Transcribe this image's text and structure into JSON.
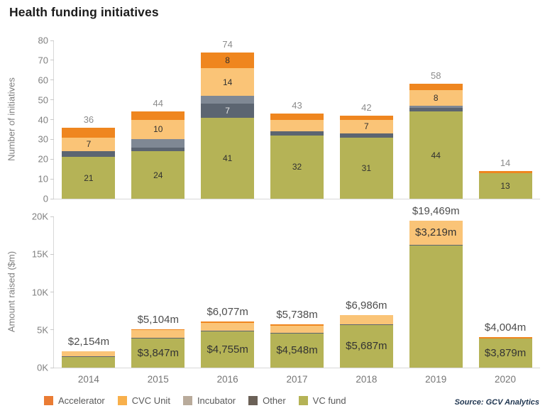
{
  "page": {
    "title": "Health funding initiatives"
  },
  "source": "Source: GCV Analytics",
  "colors": {
    "accelerator_bar": "#EF861F",
    "cvc_unit_bar": "#FAC477",
    "incubator_bar": "#7F8894",
    "other_bar": "#5C6571",
    "vc_fund_bar": "#B5B356",
    "axis_line": "#D8D8D8",
    "tick_text": "#808080",
    "total_text_top": "#8C8C8C",
    "total_text_bottom": "#4D4D4D"
  },
  "legend": [
    {
      "label": "Accelerator",
      "color": "#EA7C34"
    },
    {
      "label": "CVC Unit",
      "color": "#F8B04C"
    },
    {
      "label": "Incubator",
      "color": "#B9AB9B"
    },
    {
      "label": "Other",
      "color": "#6B6157"
    },
    {
      "label": "VC fund",
      "color": "#B5B356"
    }
  ],
  "chart_data": [
    {
      "type": "bar",
      "stacked": true,
      "title": "",
      "ylabel": "Number of initiatives",
      "xlabel": "",
      "ylim": [
        0,
        80
      ],
      "grid": false,
      "legend_position": "bottom",
      "categories": [
        "2014",
        "2015",
        "2016",
        "2017",
        "2018",
        "2019",
        "2020"
      ],
      "yticks": [
        {
          "v": 0,
          "label": "0"
        },
        {
          "v": 10,
          "label": "10"
        },
        {
          "v": 20,
          "label": "20"
        },
        {
          "v": 30,
          "label": "30"
        },
        {
          "v": 40,
          "label": "40"
        },
        {
          "v": 50,
          "label": "50"
        },
        {
          "v": 60,
          "label": "60"
        },
        {
          "v": 70,
          "label": "70"
        },
        {
          "v": 80,
          "label": "80"
        }
      ],
      "totals": [
        36,
        44,
        74,
        43,
        42,
        58,
        14
      ],
      "total_labels": [
        "36",
        "44",
        "74",
        "43",
        "42",
        "58",
        "14"
      ],
      "series": [
        {
          "name": "VC fund",
          "color": "#B5B356",
          "values": [
            21,
            24,
            41,
            32,
            31,
            44,
            13
          ],
          "labels": [
            "21",
            "24",
            "41",
            "32",
            "31",
            "44",
            "13"
          ],
          "label_style": "dark"
        },
        {
          "name": "Other",
          "color": "#5C6571",
          "values": [
            3,
            2,
            7,
            2,
            2,
            2,
            0
          ],
          "labels": [
            "",
            "",
            "7",
            "",
            "",
            "",
            ""
          ],
          "label_style": "light"
        },
        {
          "name": "Incubator",
          "color": "#7F8894",
          "values": [
            0,
            4,
            4,
            0,
            0,
            1,
            0
          ],
          "labels": [
            "",
            "",
            "",
            "",
            "",
            "",
            ""
          ],
          "label_style": "dark"
        },
        {
          "name": "CVC Unit",
          "color": "#FAC477",
          "values": [
            7,
            10,
            14,
            6,
            7,
            8,
            0
          ],
          "labels": [
            "7",
            "10",
            "14",
            "",
            "7",
            "8",
            ""
          ],
          "label_style": "dark"
        },
        {
          "name": "Accelerator",
          "color": "#EF861F",
          "values": [
            5,
            4,
            8,
            3,
            2,
            3,
            1
          ],
          "labels": [
            "",
            "",
            "8",
            "",
            "",
            "",
            ""
          ],
          "label_style": "dark"
        }
      ]
    },
    {
      "type": "bar",
      "stacked": true,
      "title": "",
      "ylabel": "Amount raised ($m)",
      "xlabel": "",
      "ylim": [
        0,
        20000
      ],
      "grid": false,
      "legend_position": "bottom",
      "categories": [
        "2014",
        "2015",
        "2016",
        "2017",
        "2018",
        "2019",
        "2020"
      ],
      "yticks": [
        {
          "v": 0,
          "label": "0K"
        },
        {
          "v": 5000,
          "label": "5K"
        },
        {
          "v": 10000,
          "label": "10K"
        },
        {
          "v": 15000,
          "label": "15K"
        },
        {
          "v": 20000,
          "label": "20K"
        }
      ],
      "totals": [
        2154,
        5104,
        6077,
        5738,
        6986,
        19469,
        4004
      ],
      "total_labels": [
        "$2,154m",
        "$5,104m",
        "$6,077m",
        "$5,738m",
        "$6,986m",
        "$19,469m",
        "$4,004m"
      ],
      "series": [
        {
          "name": "VC fund",
          "color": "#B5B356",
          "values": [
            1400,
            3847,
            4755,
            4548,
            5687,
            16150,
            3879
          ],
          "labels": [
            "",
            "$3,847m",
            "$4,755m",
            "$4,548m",
            "$5,687m",
            "",
            "$3,879m"
          ],
          "label_style": "dark"
        },
        {
          "name": "Other",
          "color": "#5C6571",
          "values": [
            100,
            100,
            100,
            90,
            60,
            100,
            0
          ],
          "labels": [
            "",
            "",
            "",
            "",
            "",
            "",
            ""
          ],
          "label_style": "dark"
        },
        {
          "name": "Incubator",
          "color": "#7F8894",
          "values": [
            0,
            0,
            0,
            0,
            0,
            0,
            0
          ],
          "labels": [
            "",
            "",
            "",
            "",
            "",
            "",
            ""
          ],
          "label_style": "dark"
        },
        {
          "name": "CVC Unit",
          "color": "#FAC477",
          "values": [
            654,
            1050,
            1100,
            950,
            1239,
            3219,
            0
          ],
          "labels": [
            "",
            "",
            "",
            "",
            "",
            "$3,219m",
            ""
          ],
          "label_style": "dark"
        },
        {
          "name": "Accelerator",
          "color": "#EF861F",
          "values": [
            0,
            107,
            122,
            150,
            0,
            0,
            125
          ],
          "labels": [
            "",
            "",
            "",
            "",
            "",
            "",
            ""
          ],
          "label_style": "dark"
        }
      ]
    }
  ]
}
